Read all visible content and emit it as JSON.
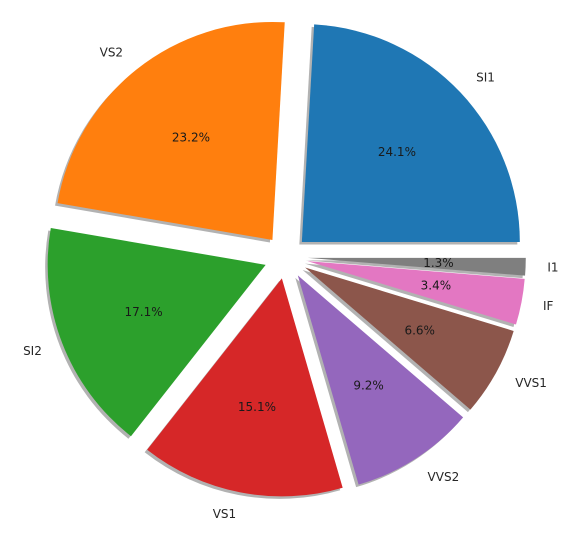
{
  "chart_data": {
    "type": "pie",
    "title": "",
    "start_angle_deg": 0,
    "direction": "counterclockwise",
    "explode": 0.1,
    "shadow": true,
    "autopct_format": "%.1f%%",
    "slices": [
      {
        "label": "SI1",
        "value": 24.1,
        "pct_label": "24.1%",
        "color": "#1f77b4"
      },
      {
        "label": "VS2",
        "value": 23.2,
        "pct_label": "23.2%",
        "color": "#ff7f0e"
      },
      {
        "label": "SI2",
        "value": 17.1,
        "pct_label": "17.1%",
        "color": "#2ca02c"
      },
      {
        "label": "VS1",
        "value": 15.1,
        "pct_label": "15.1%",
        "color": "#d62728"
      },
      {
        "label": "VVS2",
        "value": 9.2,
        "pct_label": "9.2%",
        "color": "#9467bd"
      },
      {
        "label": "VVS1",
        "value": 6.6,
        "pct_label": "6.6%",
        "color": "#8c564b"
      },
      {
        "label": "IF",
        "value": 3.4,
        "pct_label": "3.4%",
        "color": "#e377c2"
      },
      {
        "label": "I1",
        "value": 1.3,
        "pct_label": "1.3%",
        "color": "#7f7f7f"
      }
    ]
  }
}
